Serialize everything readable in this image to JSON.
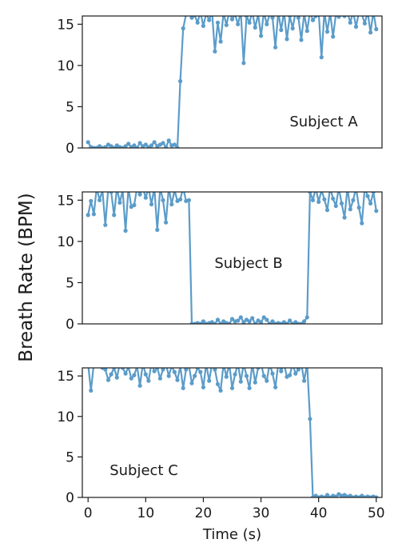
{
  "chart_data": [
    {
      "type": "line",
      "annotation": "Subject A",
      "ylim": [
        0,
        16
      ],
      "xlim": [
        -1,
        51
      ],
      "yticks": [
        0,
        5,
        10,
        15
      ],
      "x": [
        0,
        0.5,
        1,
        1.5,
        2,
        2.5,
        3,
        3.5,
        4,
        4.5,
        5,
        5.5,
        6,
        6.5,
        7,
        7.5,
        8,
        8.5,
        9,
        9.5,
        10,
        10.5,
        11,
        11.5,
        12,
        12.5,
        13,
        13.5,
        14,
        14.5,
        15,
        15.5,
        16,
        16.5,
        17,
        17.5,
        18,
        18.5,
        19,
        19.5,
        20,
        20.5,
        21,
        21.5,
        22,
        22.5,
        23,
        23.5,
        24,
        24.5,
        25,
        25.5,
        26,
        26.5,
        27,
        27.5,
        28,
        28.5,
        29,
        29.5,
        30,
        30.5,
        31,
        31.5,
        32,
        32.5,
        33,
        33.5,
        34,
        34.5,
        35,
        35.5,
        36,
        36.5,
        37,
        37.5,
        38,
        38.5,
        39,
        39.5,
        40,
        40.5,
        41,
        41.5,
        42,
        42.5,
        43,
        43.5,
        44,
        44.5,
        45,
        45.5,
        46,
        46.5,
        47,
        47.5,
        48,
        48.5,
        49,
        49.5,
        50
      ],
      "values": [
        0.7,
        0.1,
        0,
        0,
        0.2,
        0,
        0.1,
        0.4,
        0.2,
        0,
        0.3,
        0.1,
        0,
        0.2,
        0.5,
        0.1,
        0.3,
        0,
        0.6,
        0.2,
        0.4,
        0.1,
        0.3,
        0.7,
        0.2,
        0.4,
        0.6,
        0.1,
        0.9,
        0.3,
        0.4,
        0,
        8.1,
        14.5,
        16.2,
        16.5,
        15.8,
        16.1,
        15.2,
        16.5,
        14.8,
        16.3,
        15.5,
        16.5,
        11.7,
        15.2,
        12.9,
        16.4,
        14.9,
        16.5,
        15.6,
        16.2,
        15.0,
        16.5,
        10.3,
        16.0,
        15.2,
        16.5,
        14.6,
        16.2,
        13.6,
        16.5,
        15.0,
        16.2,
        15.8,
        12.2,
        16.5,
        14.3,
        16.5,
        13.2,
        16.0,
        14.5,
        16.5,
        15.8,
        13.1,
        16.3,
        14.2,
        16.5,
        15.5,
        16.0,
        16.5,
        11.0,
        16.5,
        14.1,
        16.4,
        13.5,
        16.2,
        15.9,
        16.5,
        16.0,
        16.5,
        15.2,
        16.5,
        14.7,
        16.5,
        16.2,
        15.1,
        16.5,
        14.0,
        16.5,
        14.4
      ]
    },
    {
      "type": "line",
      "annotation": "Subject B",
      "ylim": [
        0,
        16
      ],
      "xlim": [
        -1,
        51
      ],
      "yticks": [
        0,
        5,
        10,
        15
      ],
      "x": [
        0,
        0.5,
        1,
        1.5,
        2,
        2.5,
        3,
        3.5,
        4,
        4.5,
        5,
        5.5,
        6,
        6.5,
        7,
        7.5,
        8,
        8.5,
        9,
        9.5,
        10,
        10.5,
        11,
        11.5,
        12,
        12.5,
        13,
        13.5,
        14,
        14.5,
        15,
        15.5,
        16,
        16.5,
        17,
        17.5,
        18,
        18.5,
        19,
        19.5,
        20,
        20.5,
        21,
        21.5,
        22,
        22.5,
        23,
        23.5,
        24,
        24.5,
        25,
        25.5,
        26,
        26.5,
        27,
        27.5,
        28,
        28.5,
        29,
        29.5,
        30,
        30.5,
        31,
        31.5,
        32,
        32.5,
        33,
        33.5,
        34,
        34.5,
        35,
        35.5,
        36,
        36.5,
        37,
        37.5,
        38,
        38.5,
        39,
        39.5,
        40,
        40.5,
        41,
        41.5,
        42,
        42.5,
        43,
        43.5,
        44,
        44.5,
        45,
        45.5,
        46,
        46.5,
        47,
        47.5,
        48,
        48.5,
        49,
        49.5,
        50
      ],
      "values": [
        13.2,
        14.9,
        13.3,
        16.5,
        15.0,
        16.2,
        12.0,
        16.5,
        16.0,
        13.2,
        16.5,
        14.7,
        16.2,
        11.3,
        16.5,
        14.2,
        14.4,
        16.5,
        15.7,
        16.5,
        15.3,
        16.5,
        14.5,
        16.5,
        11.4,
        16.5,
        15.0,
        12.3,
        16.5,
        14.5,
        16.2,
        14.9,
        15.1,
        16.5,
        14.9,
        15.0,
        0,
        0,
        0.1,
        0,
        0.3,
        0,
        0.1,
        0.2,
        0,
        0.5,
        0,
        0.3,
        0.1,
        0,
        0.6,
        0.3,
        0.4,
        0.8,
        0.2,
        0.5,
        0.3,
        0.7,
        0,
        0.4,
        0.2,
        0.8,
        0.5,
        0,
        0.3,
        0,
        0.1,
        0,
        0.2,
        0,
        0.4,
        0,
        0.2,
        0,
        0,
        0.3,
        0.8,
        16.0,
        15.0,
        16.5,
        14.8,
        16.2,
        15.1,
        13.8,
        16.5,
        15.2,
        14.3,
        16.5,
        14.6,
        12.9,
        16.5,
        13.9,
        15.0,
        16.5,
        14.1,
        12.2,
        16.5,
        15.5,
        14.6,
        16.0,
        13.7
      ],
      "text_position": "center"
    },
    {
      "type": "line",
      "annotation": "Subject C",
      "ylim": [
        0,
        16
      ],
      "xlim": [
        -1,
        51
      ],
      "yticks": [
        0,
        5,
        10,
        15
      ],
      "xticks": [
        0,
        10,
        20,
        30,
        40,
        50
      ],
      "xlabel": "Time (s)",
      "x": [
        0,
        0.5,
        1,
        1.5,
        2,
        2.5,
        3,
        3.5,
        4,
        4.5,
        5,
        5.5,
        6,
        6.5,
        7,
        7.5,
        8,
        8.5,
        9,
        9.5,
        10,
        10.5,
        11,
        11.5,
        12,
        12.5,
        13,
        13.5,
        14,
        14.5,
        15,
        15.5,
        16,
        16.5,
        17,
        17.5,
        18,
        18.5,
        19,
        19.5,
        20,
        20.5,
        21,
        21.5,
        22,
        22.5,
        23,
        23.5,
        24,
        24.5,
        25,
        25.5,
        26,
        26.5,
        27,
        27.5,
        28,
        28.5,
        29,
        29.5,
        30,
        30.5,
        31,
        31.5,
        32,
        32.5,
        33,
        33.5,
        34,
        34.5,
        35,
        35.5,
        36,
        36.5,
        37,
        37.5,
        38,
        38.5,
        39,
        39.5,
        40,
        40.5,
        41,
        41.5,
        42,
        42.5,
        43,
        43.5,
        44,
        44.5,
        45,
        45.5,
        46,
        46.5,
        47,
        47.5,
        48,
        48.5,
        49,
        49.5,
        50
      ],
      "values": [
        16.5,
        13.2,
        16.5,
        17.0,
        16.5,
        16.0,
        15.8,
        14.5,
        15.2,
        16.0,
        14.8,
        16.5,
        16.0,
        15.3,
        16.1,
        14.7,
        15.1,
        16.2,
        13.8,
        16.5,
        15.2,
        14.4,
        16.5,
        15.6,
        16.0,
        14.7,
        15.8,
        16.5,
        15.0,
        16.2,
        15.5,
        14.5,
        16.2,
        13.5,
        15.8,
        16.3,
        14.1,
        15.0,
        16.0,
        15.5,
        13.6,
        16.5,
        14.4,
        16.5,
        15.8,
        14.0,
        13.2,
        16.5,
        14.9,
        16.5,
        13.5,
        15.2,
        16.5,
        14.3,
        16.5,
        15.0,
        13.5,
        16.5,
        14.2,
        16.0,
        16.5,
        15.0,
        14.4,
        16.5,
        15.3,
        13.6,
        16.5,
        15.6,
        16.5,
        14.9,
        15.1,
        16.5,
        15.3,
        15.8,
        16.5,
        14.4,
        16.5,
        9.7,
        0,
        0.2,
        0,
        0.1,
        0,
        0.3,
        0,
        0.2,
        0.1,
        0.4,
        0.2,
        0.3,
        0.1,
        0.2,
        0,
        0.1,
        0,
        0.2,
        0,
        0.1,
        0,
        0.1,
        0
      ]
    }
  ],
  "ylabel": "Breath Rate (BPM)",
  "series_color": "#5b9cc9"
}
